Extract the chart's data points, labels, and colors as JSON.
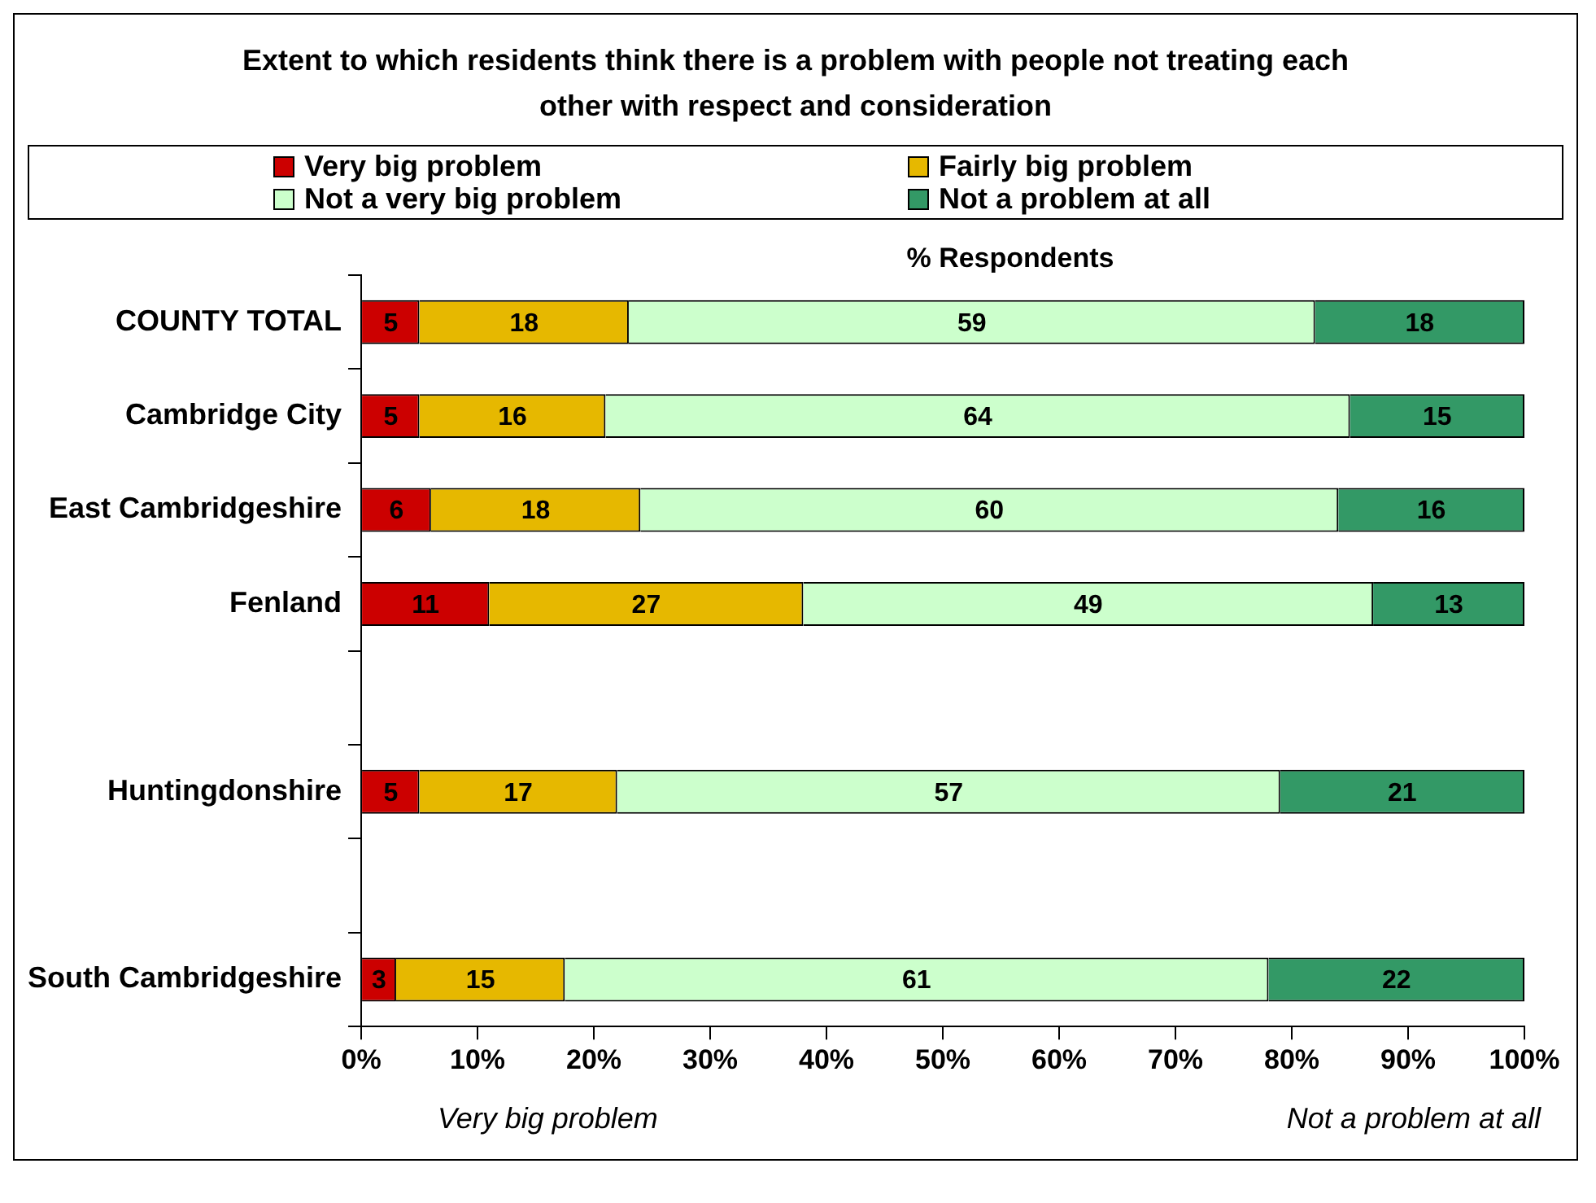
{
  "chart_data": {
    "type": "bar",
    "orientation": "horizontal",
    "stacked": true,
    "title": "Extent to which residents think there is a problem with people not treating each other with respect and consideration",
    "xlabel": "% Respondents",
    "categories": [
      "COUNTY TOTAL",
      "Cambridge City",
      "East Cambridgeshire",
      "Fenland",
      null,
      "Huntingdonshire",
      null,
      "South Cambridgeshire"
    ],
    "series": [
      {
        "name": "Very big problem",
        "color": "#cc0000",
        "values": [
          5,
          5,
          6,
          11,
          null,
          5,
          null,
          3
        ],
        "value_labels": [
          "5",
          "5",
          "6",
          "11",
          null,
          "5",
          null,
          "3"
        ]
      },
      {
        "name": "Fairly big problem",
        "color": "#e6b800",
        "values": [
          18,
          16,
          18,
          27,
          null,
          17,
          null,
          14.5
        ],
        "value_labels": [
          "18",
          "16",
          "18",
          "27",
          null,
          "17",
          null,
          "15"
        ]
      },
      {
        "name": "Not a very big problem",
        "color": "#ccffcc",
        "values": [
          59,
          64,
          60,
          49,
          null,
          57,
          null,
          60.5
        ],
        "value_labels": [
          "59",
          "64",
          "60",
          "49",
          null,
          "57",
          null,
          "61"
        ]
      },
      {
        "name": "Not a problem at all",
        "color": "#339966",
        "values": [
          18,
          15,
          16,
          13,
          null,
          21,
          null,
          22
        ],
        "value_labels": [
          "18",
          "15",
          "16",
          "13",
          null,
          "21",
          null,
          "22"
        ]
      }
    ],
    "xlim": [
      0,
      100
    ],
    "xticks": [
      {
        "value": 0,
        "label": "0%"
      },
      {
        "value": 10,
        "label": "10%"
      },
      {
        "value": 20,
        "label": "20%"
      },
      {
        "value": 30,
        "label": "30%"
      },
      {
        "value": 40,
        "label": "40%"
      },
      {
        "value": 50,
        "label": "50%"
      },
      {
        "value": 60,
        "label": "60%"
      },
      {
        "value": 70,
        "label": "70%"
      },
      {
        "value": 80,
        "label": "80%"
      },
      {
        "value": 90,
        "label": "90%"
      },
      {
        "value": 100,
        "label": "100%"
      }
    ],
    "grid": false,
    "legend": "top",
    "annotations": [
      "Very big problem",
      "Not a problem at all"
    ]
  }
}
